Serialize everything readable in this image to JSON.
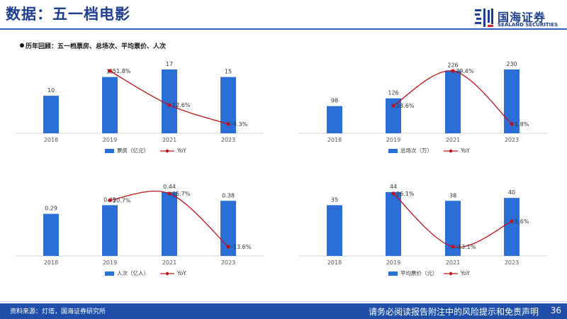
{
  "header": {
    "title": "数据：五一档电影",
    "subtitle": "历年回顾：五一档票房、总场次、平均票价、人次",
    "logo_cn": "国海证券",
    "logo_en": "SEALAND SECURITIES",
    "logo_icon": "sealand-logo-icon"
  },
  "footer": {
    "source": "资料来源：灯塔，国海证券研究所",
    "disclaimer": "请务必阅读报告附注中的风险提示和免责声明",
    "page": "36"
  },
  "colors": {
    "bar": "#2b6fd6",
    "line": "#c0101a",
    "brand": "#1d3f8f"
  },
  "chart_data": [
    {
      "type": "bar",
      "categories": [
        "2018",
        "2019",
        "2021",
        "2023"
      ],
      "values": [
        10,
        15,
        17,
        15
      ],
      "value_labels": [
        "10",
        "15",
        "17",
        "15"
      ],
      "series_name": "票房（亿元）",
      "line": {
        "name": "YoY",
        "points": [
          {
            "x": "2019",
            "y": 51.8,
            "label": "51.8%"
          },
          {
            "x": "2021",
            "y": 12.6,
            "label": "12.6%"
          },
          {
            "x": "2023",
            "y": -9.3,
            "label": "-9.3%"
          }
        ]
      },
      "legend_position": "bottom"
    },
    {
      "type": "bar",
      "categories": [
        "2018",
        "2019",
        "2021",
        "2023"
      ],
      "values": [
        98,
        126,
        226,
        230
      ],
      "value_labels": [
        "98",
        "126",
        "226",
        "230"
      ],
      "series_name": "总场次（万）",
      "line": {
        "name": "YoY",
        "points": [
          {
            "x": "2019",
            "y": 28.6,
            "label": "28.6%"
          },
          {
            "x": "2021",
            "y": 79.4,
            "label": "79.4%"
          },
          {
            "x": "2023",
            "y": 1.8,
            "label": "1.8%"
          }
        ]
      },
      "legend_position": "bottom"
    },
    {
      "type": "bar",
      "categories": [
        "2018",
        "2019",
        "2021",
        "2023"
      ],
      "values": [
        0.29,
        0.35,
        0.44,
        0.38
      ],
      "value_labels": [
        "0.29",
        "0.35",
        "0.44",
        "0.38"
      ],
      "series_name": "人次（亿人）",
      "line": {
        "name": "YoY",
        "points": [
          {
            "x": "2019",
            "y": 20.7,
            "label": "20.7%"
          },
          {
            "x": "2021",
            "y": 25.7,
            "label": "25.7%"
          },
          {
            "x": "2023",
            "y": -13.6,
            "label": "-13.6%"
          }
        ]
      },
      "legend_position": "bottom"
    },
    {
      "type": "bar",
      "categories": [
        "2018",
        "2019",
        "2021",
        "2023"
      ],
      "values": [
        35,
        44,
        38,
        40
      ],
      "value_labels": [
        "35",
        "44",
        "38",
        "40"
      ],
      "series_name": "平均票价（元）",
      "line": {
        "name": "YoY",
        "points": [
          {
            "x": "2019",
            "y": 26.1,
            "label": "26.1%"
          },
          {
            "x": "2021",
            "y": -13.1,
            "label": "-13.1%"
          },
          {
            "x": "2023",
            "y": 5.6,
            "label": "5.6%"
          }
        ]
      },
      "legend_position": "bottom"
    }
  ]
}
